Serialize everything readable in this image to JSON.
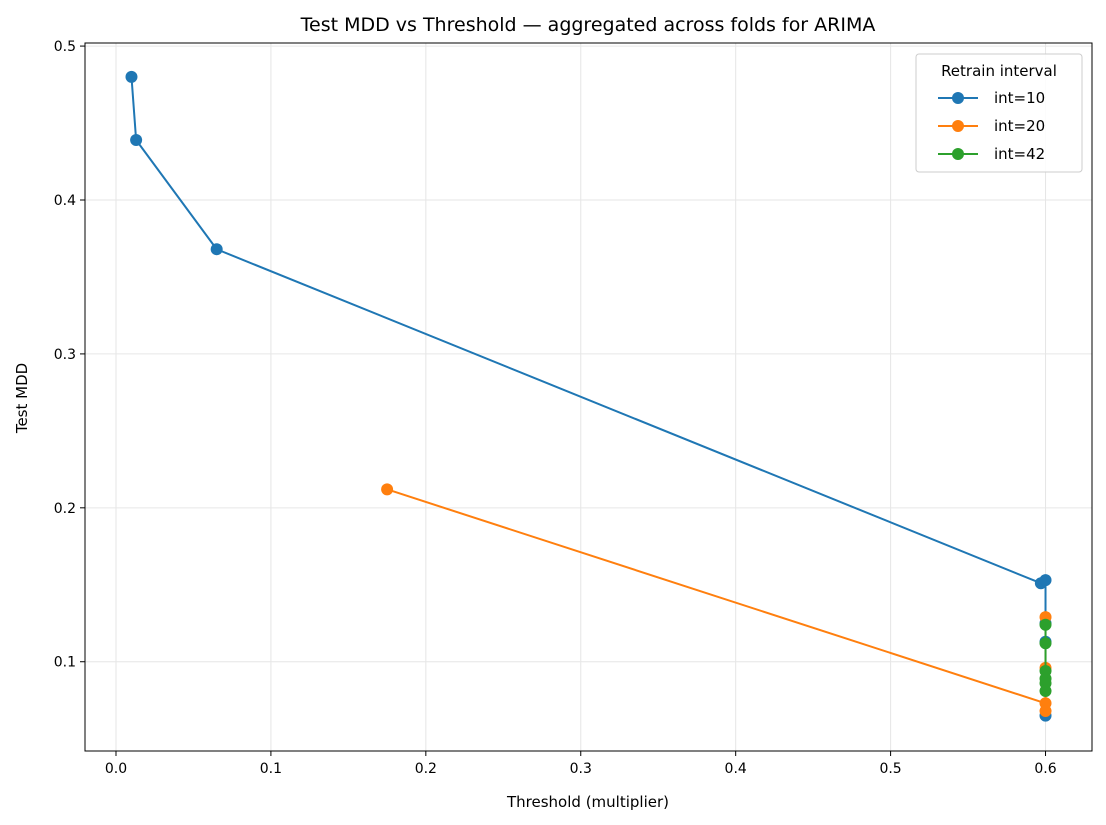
{
  "chart_data": {
    "type": "line",
    "title": "Test MDD vs Threshold — aggregated across folds for ARIMA",
    "xlabel": "Threshold (multiplier)",
    "ylabel": "Test MDD",
    "xlim": [
      -0.02,
      0.63
    ],
    "ylim": [
      0.042,
      0.502
    ],
    "xticks": [
      0.0,
      0.1,
      0.2,
      0.3,
      0.4,
      0.5,
      0.6
    ],
    "xtick_labels": [
      "0.0",
      "0.1",
      "0.2",
      "0.3",
      "0.4",
      "0.5",
      "0.6"
    ],
    "yticks": [
      0.1,
      0.2,
      0.3,
      0.4,
      0.5
    ],
    "ytick_labels": [
      "0.1",
      "0.2",
      "0.3",
      "0.4",
      "0.5"
    ],
    "grid": true,
    "legend": {
      "title": "Retrain interval",
      "placement": "top-right"
    },
    "series": [
      {
        "name": "int=10",
        "color": "#1f77b4",
        "points": [
          [
            0.01,
            0.48
          ],
          [
            0.013,
            0.439
          ],
          [
            0.065,
            0.368
          ],
          [
            0.597,
            0.151
          ],
          [
            0.6,
            0.153
          ],
          [
            0.6,
            0.125
          ],
          [
            0.6,
            0.113
          ],
          [
            0.6,
            0.065
          ]
        ]
      },
      {
        "name": "int=20",
        "color": "#ff7f0e",
        "points": [
          [
            0.175,
            0.212
          ],
          [
            0.6,
            0.073
          ],
          [
            0.6,
            0.129
          ],
          [
            0.6,
            0.096
          ],
          [
            0.6,
            0.068
          ]
        ]
      },
      {
        "name": "int=42",
        "color": "#2ca02c",
        "points": [
          [
            0.6,
            0.124
          ],
          [
            0.6,
            0.112
          ],
          [
            0.6,
            0.094
          ],
          [
            0.6,
            0.089
          ],
          [
            0.6,
            0.086
          ],
          [
            0.6,
            0.081
          ]
        ]
      }
    ]
  }
}
